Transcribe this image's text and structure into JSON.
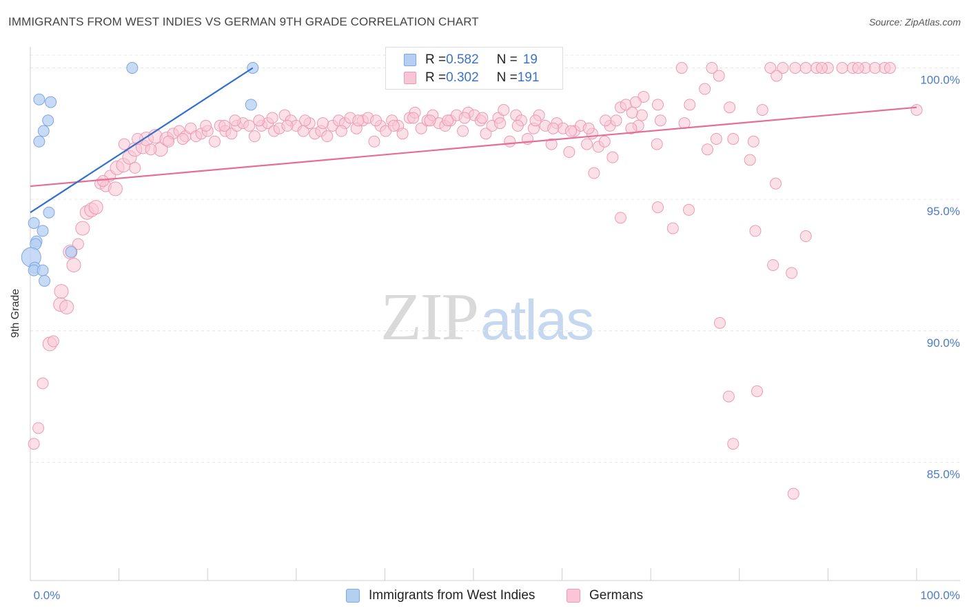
{
  "title": "IMMIGRANTS FROM WEST INDIES VS GERMAN 9TH GRADE CORRELATION CHART",
  "source": "Source: ZipAtlas.com",
  "watermark": {
    "zip": "ZIP",
    "atlas": "atlas"
  },
  "legend": {
    "r_label": "R = ",
    "n_label": "N = ",
    "series1": {
      "r": "0.582",
      "n": "19"
    },
    "series2": {
      "r": "0.302",
      "n": "191"
    }
  },
  "bottom_legend": {
    "series1": "Immigrants from West Indies",
    "series2": "Germans"
  },
  "chart_data": {
    "type": "scatter",
    "title": "IMMIGRANTS FROM WEST INDIES VS GERMAN 9TH GRADE CORRELATION CHART",
    "xlabel": "",
    "ylabel": "9th Grade",
    "xlim": [
      0,
      100
    ],
    "ylim": [
      80.5,
      100.8
    ],
    "x_tick_labels": [
      "0.0%",
      "100.0%"
    ],
    "y_ticks": [
      {
        "value": 100,
        "label": "100.0%"
      },
      {
        "value": 95,
        "label": "95.0%"
      },
      {
        "value": 90,
        "label": "90.0%"
      },
      {
        "value": 85,
        "label": "85.0%"
      }
    ],
    "colors": {
      "series1_fill": "#b5cff3",
      "series1_stroke": "#7ea6e0",
      "series1_line": "#2f6fcf",
      "series2_fill": "#f9c6d6",
      "series2_stroke": "#eb9ab4",
      "series2_line": "#e56d96",
      "grid": "#e6e6e6",
      "tick_label": "#4a7cc9"
    },
    "series": [
      {
        "name": "Immigrants from West Indies",
        "R": 0.582,
        "N": 19,
        "trend": {
          "x": [
            0,
            25.1
          ],
          "y": [
            94.5,
            100.0
          ]
        },
        "points": [
          [
            11.5,
            100.0,
            8
          ],
          [
            25.1,
            100.0,
            8
          ],
          [
            1.0,
            98.8,
            8
          ],
          [
            2.3,
            98.7,
            8
          ],
          [
            24.9,
            98.6,
            8
          ],
          [
            2.0,
            98.0,
            8
          ],
          [
            1.5,
            97.6,
            8
          ],
          [
            1.0,
            97.2,
            8
          ],
          [
            2.1,
            94.5,
            8
          ],
          [
            0.4,
            94.1,
            8
          ],
          [
            1.4,
            93.8,
            8
          ],
          [
            0.7,
            93.4,
            8
          ],
          [
            0.6,
            93.3,
            8
          ],
          [
            4.6,
            93.0,
            8
          ],
          [
            0.1,
            92.8,
            14
          ],
          [
            0.5,
            92.4,
            8
          ],
          [
            0.4,
            92.3,
            8
          ],
          [
            1.4,
            92.3,
            8
          ],
          [
            1.6,
            91.9,
            8
          ]
        ]
      },
      {
        "name": "Germans",
        "R": 0.302,
        "N": 191,
        "trend": {
          "x": [
            0,
            100
          ],
          "y": [
            95.5,
            98.5
          ]
        },
        "points": [
          [
            73.5,
            100.0,
            8
          ],
          [
            76.9,
            100.0,
            8
          ],
          [
            83.5,
            100.0,
            8
          ],
          [
            84.9,
            100.0,
            8
          ],
          [
            86.3,
            100.0,
            8
          ],
          [
            87.5,
            100.0,
            8
          ],
          [
            88.7,
            100.0,
            8
          ],
          [
            90.0,
            100.0,
            8
          ],
          [
            91.6,
            100.0,
            8
          ],
          [
            92.8,
            100.0,
            8
          ],
          [
            94.2,
            100.0,
            8
          ],
          [
            95.3,
            100.0,
            8
          ],
          [
            96.4,
            100.0,
            8
          ],
          [
            97.0,
            100.0,
            8
          ],
          [
            89.3,
            100.0,
            8
          ],
          [
            93.4,
            100.0,
            8
          ],
          [
            77.7,
            99.7,
            8
          ],
          [
            84.2,
            99.7,
            8
          ],
          [
            76.1,
            99.2,
            8
          ],
          [
            69.2,
            98.9,
            8
          ],
          [
            66.6,
            98.5,
            8
          ],
          [
            70.8,
            98.6,
            8
          ],
          [
            74.4,
            98.6,
            8
          ],
          [
            78.9,
            98.5,
            8
          ],
          [
            82.6,
            98.4,
            8
          ],
          [
            69.0,
            98.2,
            8
          ],
          [
            71.1,
            98.0,
            8
          ],
          [
            73.8,
            97.9,
            8
          ],
          [
            68.6,
            97.8,
            8
          ],
          [
            100.0,
            98.4,
            8
          ],
          [
            77.4,
            97.3,
            8
          ],
          [
            79.3,
            97.3,
            8
          ],
          [
            81.6,
            97.2,
            8
          ],
          [
            70.7,
            97.1,
            8
          ],
          [
            76.4,
            96.9,
            8
          ],
          [
            81.2,
            96.5,
            8
          ],
          [
            65.7,
            96.6,
            8
          ],
          [
            63.6,
            96.0,
            8
          ],
          [
            84.1,
            95.6,
            8
          ],
          [
            70.8,
            94.7,
            8
          ],
          [
            74.3,
            94.6,
            8
          ],
          [
            66.6,
            94.3,
            8
          ],
          [
            72.5,
            93.9,
            8
          ],
          [
            81.8,
            93.8,
            8
          ],
          [
            87.5,
            93.6,
            8
          ],
          [
            83.8,
            92.5,
            8
          ],
          [
            85.9,
            92.2,
            8
          ],
          [
            77.8,
            90.3,
            8
          ],
          [
            82.0,
            87.7,
            8
          ],
          [
            78.8,
            87.5,
            8
          ],
          [
            79.3,
            85.7,
            8
          ],
          [
            86.1,
            83.8,
            8
          ],
          [
            0.4,
            85.7,
            8
          ],
          [
            0.9,
            86.3,
            8
          ],
          [
            1.4,
            88.0,
            8
          ],
          [
            2.2,
            89.5,
            10
          ],
          [
            2.6,
            89.6,
            8
          ],
          [
            3.4,
            91.0,
            10
          ],
          [
            3.5,
            91.5,
            10
          ],
          [
            4.1,
            90.9,
            10
          ],
          [
            4.5,
            93.0,
            10
          ],
          [
            4.9,
            92.5,
            10
          ],
          [
            5.4,
            93.3,
            8
          ],
          [
            5.9,
            93.9,
            10
          ],
          [
            6.4,
            94.5,
            10
          ],
          [
            6.9,
            94.6,
            10
          ],
          [
            7.4,
            94.7,
            10
          ],
          [
            7.9,
            95.6,
            8
          ],
          [
            8.5,
            95.5,
            8
          ],
          [
            9.0,
            95.9,
            8
          ],
          [
            9.6,
            95.4,
            10
          ],
          [
            9.8,
            96.2,
            10
          ],
          [
            10.5,
            96.3,
            10
          ],
          [
            11.2,
            96.6,
            10
          ],
          [
            11.8,
            96.9,
            10
          ],
          [
            12.7,
            97.0,
            10
          ],
          [
            13.1,
            97.3,
            10
          ],
          [
            14.1,
            97.4,
            10
          ],
          [
            14.7,
            96.9,
            10
          ],
          [
            15.4,
            97.3,
            10
          ],
          [
            16.1,
            97.5,
            8
          ],
          [
            16.8,
            97.6,
            8
          ],
          [
            17.5,
            97.4,
            8
          ],
          [
            18.1,
            97.7,
            8
          ],
          [
            18.7,
            97.4,
            8
          ],
          [
            19.3,
            97.5,
            8
          ],
          [
            20.0,
            97.6,
            8
          ],
          [
            20.8,
            97.2,
            8
          ],
          [
            21.4,
            97.8,
            8
          ],
          [
            22.0,
            97.6,
            8
          ],
          [
            22.7,
            97.5,
            8
          ],
          [
            23.3,
            97.8,
            8
          ],
          [
            24.0,
            97.9,
            8
          ],
          [
            24.7,
            97.8,
            8
          ],
          [
            25.3,
            97.4,
            8
          ],
          [
            26.1,
            97.8,
            8
          ],
          [
            26.8,
            97.9,
            8
          ],
          [
            27.5,
            97.6,
            8
          ],
          [
            28.1,
            97.7,
            8
          ],
          [
            28.7,
            98.2,
            8
          ],
          [
            29.4,
            98.0,
            8
          ],
          [
            30.0,
            97.8,
            8
          ],
          [
            30.8,
            97.6,
            8
          ],
          [
            31.5,
            97.9,
            8
          ],
          [
            32.1,
            97.5,
            8
          ],
          [
            32.8,
            97.6,
            8
          ],
          [
            33.5,
            97.4,
            8
          ],
          [
            34.1,
            97.8,
            8
          ],
          [
            34.8,
            98.0,
            8
          ],
          [
            35.5,
            97.9,
            8
          ],
          [
            36.1,
            98.1,
            8
          ],
          [
            36.8,
            97.7,
            8
          ],
          [
            37.5,
            98.0,
            8
          ],
          [
            38.1,
            98.1,
            8
          ],
          [
            38.8,
            97.2,
            8
          ],
          [
            39.5,
            97.8,
            8
          ],
          [
            40.1,
            97.6,
            8
          ],
          [
            40.8,
            98.0,
            8
          ],
          [
            41.5,
            97.8,
            8
          ],
          [
            42.0,
            97.5,
            8
          ],
          [
            42.8,
            98.1,
            8
          ],
          [
            43.4,
            98.3,
            8
          ],
          [
            44.1,
            97.7,
            8
          ],
          [
            44.8,
            98.0,
            8
          ],
          [
            45.4,
            98.2,
            8
          ],
          [
            46.1,
            97.9,
            8
          ],
          [
            46.8,
            97.8,
            8
          ],
          [
            47.4,
            98.0,
            8
          ],
          [
            48.1,
            98.2,
            8
          ],
          [
            48.8,
            97.6,
            8
          ],
          [
            49.4,
            98.3,
            8
          ],
          [
            50.1,
            98.2,
            8
          ],
          [
            50.8,
            98.0,
            8
          ],
          [
            51.4,
            97.5,
            8
          ],
          [
            52.1,
            97.8,
            8
          ],
          [
            52.8,
            98.1,
            8
          ],
          [
            53.4,
            98.4,
            8
          ],
          [
            54.1,
            97.2,
            8
          ],
          [
            54.8,
            98.2,
            8
          ],
          [
            55.4,
            98.0,
            8
          ],
          [
            56.1,
            97.3,
            8
          ],
          [
            56.8,
            97.7,
            8
          ],
          [
            57.4,
            98.2,
            8
          ],
          [
            58.1,
            97.8,
            8
          ],
          [
            58.8,
            97.1,
            8
          ],
          [
            59.4,
            97.9,
            8
          ],
          [
            60.1,
            97.7,
            8
          ],
          [
            60.8,
            96.8,
            8
          ],
          [
            61.4,
            97.6,
            8
          ],
          [
            62.1,
            97.8,
            8
          ],
          [
            62.8,
            97.1,
            8
          ],
          [
            63.4,
            97.5,
            8
          ],
          [
            64.1,
            97.0,
            8
          ],
          [
            64.8,
            97.2,
            8
          ],
          [
            65.4,
            97.8,
            8
          ],
          [
            66.1,
            98.0,
            8
          ],
          [
            67.2,
            98.6,
            8
          ],
          [
            67.9,
            98.3,
            8
          ],
          [
            68.3,
            98.7,
            8
          ],
          [
            11.8,
            96.2,
            8
          ],
          [
            8.2,
            95.7,
            8
          ],
          [
            10.6,
            97.1,
            8
          ],
          [
            12.1,
            97.3,
            8
          ],
          [
            13.6,
            96.9,
            8
          ],
          [
            15.6,
            97.2,
            8
          ],
          [
            17.2,
            97.3,
            8
          ],
          [
            19.8,
            97.8,
            8
          ],
          [
            21.9,
            97.8,
            8
          ],
          [
            23.1,
            98.0,
            8
          ],
          [
            25.8,
            98.0,
            8
          ],
          [
            27.3,
            98.1,
            8
          ],
          [
            29.0,
            97.8,
            8
          ],
          [
            31.0,
            98.0,
            8
          ],
          [
            33.0,
            97.9,
            8
          ],
          [
            35.1,
            97.6,
            8
          ],
          [
            37.0,
            98.0,
            8
          ],
          [
            39.0,
            98.0,
            8
          ],
          [
            41.0,
            97.8,
            8
          ],
          [
            43.2,
            98.1,
            8
          ],
          [
            45.1,
            98.0,
            8
          ],
          [
            47.1,
            98.0,
            8
          ],
          [
            49.0,
            98.1,
            8
          ],
          [
            51.0,
            98.1,
            8
          ],
          [
            53.0,
            97.9,
            8
          ],
          [
            55.0,
            97.8,
            8
          ],
          [
            57.0,
            98.0,
            8
          ],
          [
            59.0,
            97.7,
            8
          ],
          [
            61.0,
            97.6,
            8
          ],
          [
            63.0,
            97.7,
            8
          ],
          [
            64.9,
            98.0,
            8
          ],
          [
            67.8,
            97.7,
            8
          ]
        ]
      }
    ]
  }
}
